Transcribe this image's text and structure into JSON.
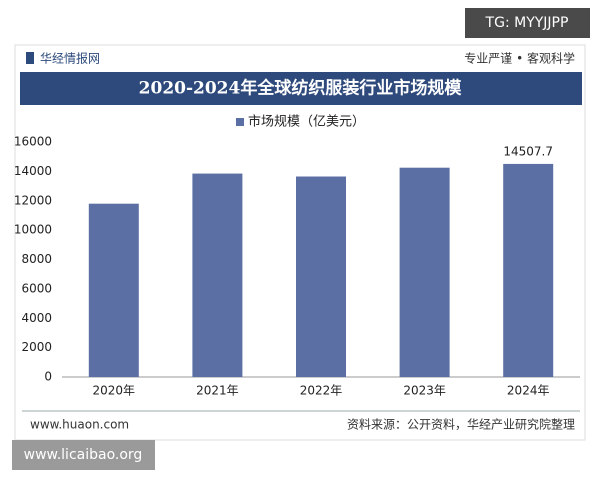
{
  "watermark_top": "TG: MYYJJPP",
  "header": {
    "brand": "华经情报网",
    "slogan": "专业严谨 • 客观科学"
  },
  "chart_data": {
    "type": "bar",
    "title": "2020-2024年全球纺织服装行业市场规模",
    "categories": [
      "2020年",
      "2021年",
      "2022年",
      "2023年",
      "2024年"
    ],
    "series": [
      {
        "name": "市场规模（亿美元）",
        "color": "#5b6fa5",
        "values": [
          11800,
          13850,
          13650,
          14250,
          14507.7
        ],
        "value_labels": [
          null,
          null,
          null,
          null,
          "14507.7"
        ]
      }
    ],
    "ylim": [
      0,
      16000
    ],
    "yticks": [
      0,
      2000,
      4000,
      6000,
      8000,
      10000,
      12000,
      14000,
      16000
    ],
    "grid": false,
    "legend": "top"
  },
  "footer": {
    "site": "www.huaon.com",
    "source": "资料来源：公开资料，华经产业研究院整理"
  },
  "watermark_bottom": "www.licaibao.org"
}
